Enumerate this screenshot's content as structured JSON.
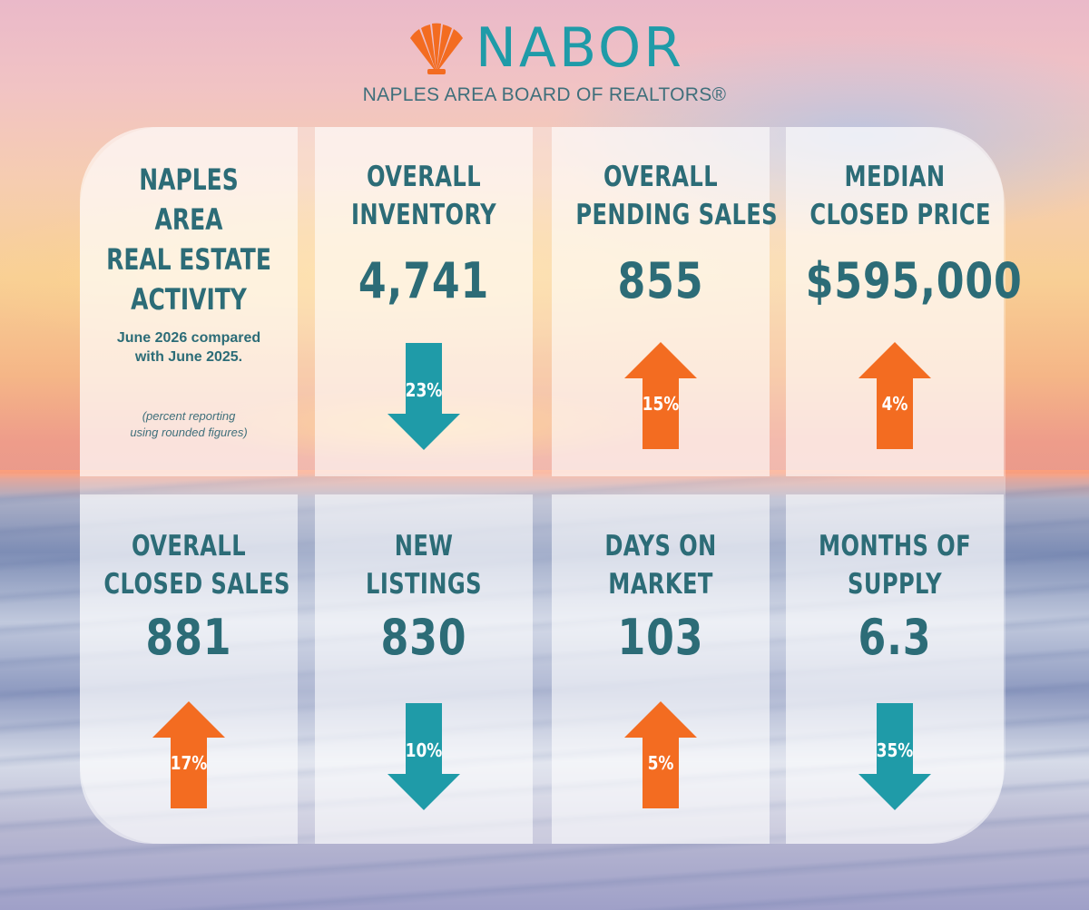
{
  "brand": {
    "name": "NABOR",
    "subtitle": "NAPLES AREA BOARD OF REALTORS®"
  },
  "intro": {
    "title_lines": [
      "NAPLES",
      "AREA",
      "REAL ESTATE",
      "ACTIVITY"
    ],
    "compare_line1": "June 2026 compared",
    "compare_line2": "with June 2025.",
    "note_line1": "(percent reporting",
    "note_line2": "using rounded figures)"
  },
  "colors": {
    "teal": "#1f9ba8",
    "text_teal": "#2c6c77",
    "orange": "#f36c21"
  },
  "stats": [
    {
      "label1": "OVERALL",
      "label2": "INVENTORY",
      "value": "4,741",
      "change": "23%",
      "direction": "down"
    },
    {
      "label1": "OVERALL",
      "label2": "PENDING SALES",
      "value": "855",
      "change": "15%",
      "direction": "up"
    },
    {
      "label1": "MEDIAN",
      "label2": "CLOSED PRICE",
      "value": "$595,000",
      "change": "4%",
      "direction": "up"
    },
    {
      "label1": "OVERALL",
      "label2": "CLOSED SALES",
      "value": "881",
      "change": "17%",
      "direction": "up"
    },
    {
      "label1": "NEW",
      "label2": "LISTINGS",
      "value": "830",
      "change": "10%",
      "direction": "down"
    },
    {
      "label1": "DAYS ON",
      "label2": "MARKET",
      "value": "103",
      "change": "5%",
      "direction": "up"
    },
    {
      "label1": "MONTHS OF",
      "label2": "SUPPLY",
      "value": "6.3",
      "change": "35%",
      "direction": "down"
    }
  ]
}
